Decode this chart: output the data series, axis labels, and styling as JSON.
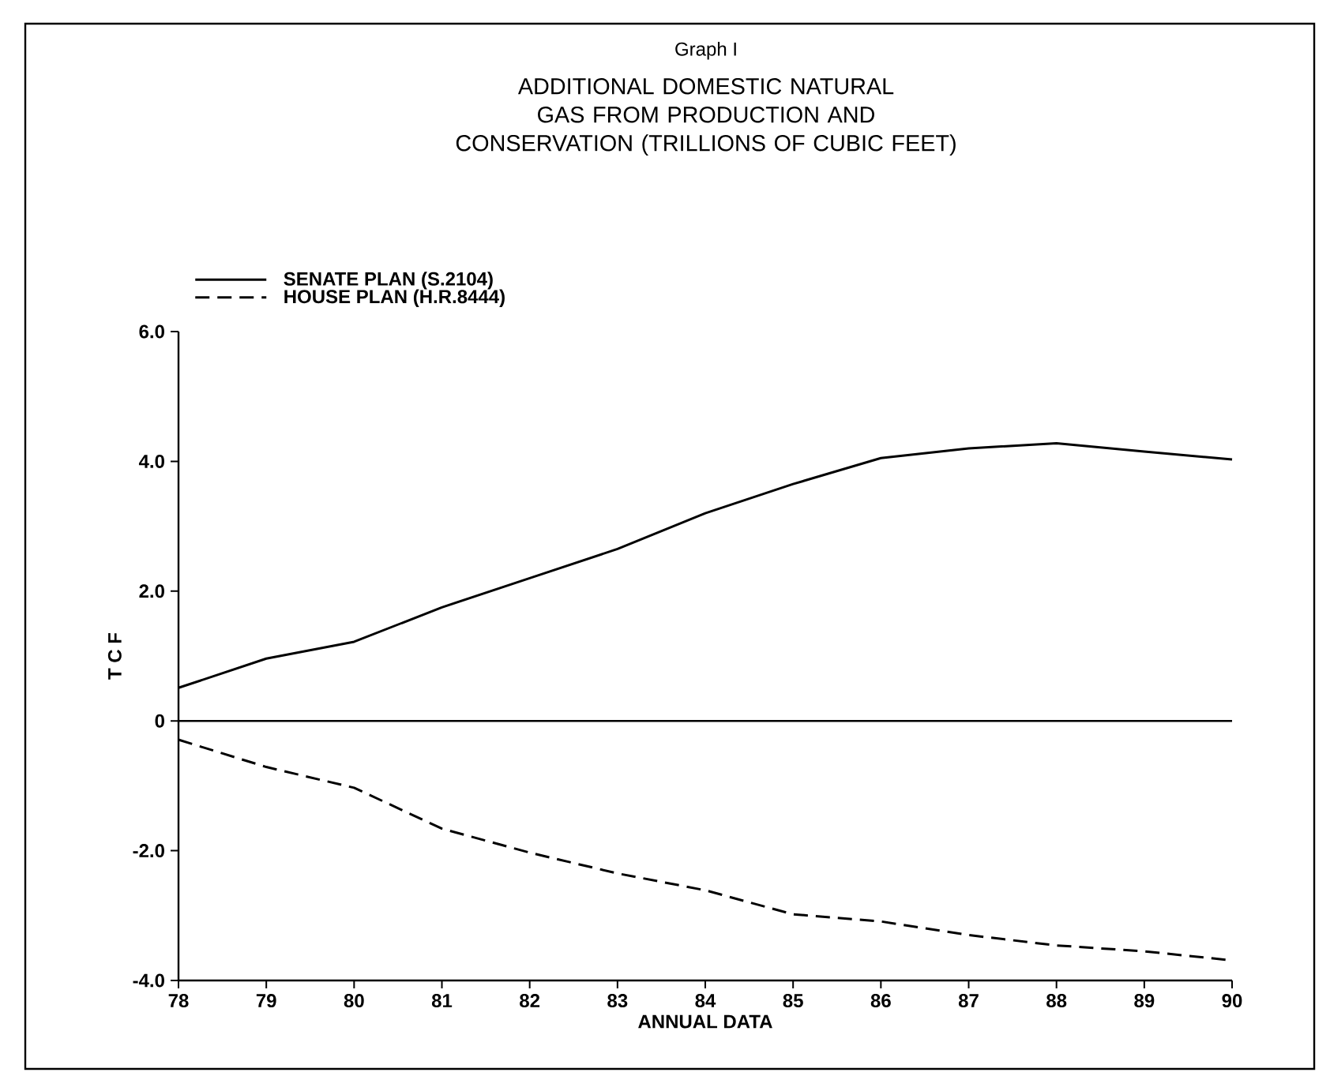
{
  "chart_data": {
    "type": "line",
    "title": "Graph I",
    "subtitle": "ADDITIONAL DOMESTIC NATURAL GAS FROM PRODUCTION AND CONSERVATION (TRILLIONS OF CUBIC FEET)",
    "xlabel": "ANNUAL DATA",
    "ylabel": "T C F",
    "x": [
      78,
      79,
      80,
      81,
      82,
      83,
      84,
      85,
      86,
      87,
      88,
      89,
      90
    ],
    "series": [
      {
        "name": "SENATE PLAN (S.2104)",
        "color": "#000000",
        "line_style": "solid",
        "values": [
          0.51,
          0.96,
          1.22,
          1.75,
          2.2,
          2.65,
          3.2,
          3.65,
          4.05,
          4.2,
          4.28,
          4.15,
          4.03
        ]
      },
      {
        "name": "HOUSE PLAN (H.R.8444)",
        "color": "#000000",
        "line_style": "dashed",
        "values": [
          -0.29,
          -0.71,
          -1.03,
          -1.66,
          -2.03,
          -2.35,
          -2.61,
          -2.98,
          -3.09,
          -3.3,
          -3.46,
          -3.55,
          -3.69
        ]
      }
    ],
    "xlim": [
      78,
      90
    ],
    "xticks": [
      78,
      79,
      80,
      81,
      82,
      83,
      84,
      85,
      86,
      87,
      88,
      89,
      90
    ],
    "ylim": [
      -4,
      6
    ],
    "yticks": [
      {
        "value": -4,
        "label": "-4.0"
      },
      {
        "value": -2,
        "label": "-2.0"
      },
      0,
      {
        "value": 2,
        "label": "2.0"
      },
      {
        "value": 4,
        "label": "4.0"
      },
      {
        "value": 6,
        "label": "6.0"
      }
    ],
    "ref_lines": [
      {
        "axis": "y",
        "value": 0,
        "color": "#000000"
      }
    ],
    "legend": "top left",
    "grid": false,
    "marker": "none"
  }
}
